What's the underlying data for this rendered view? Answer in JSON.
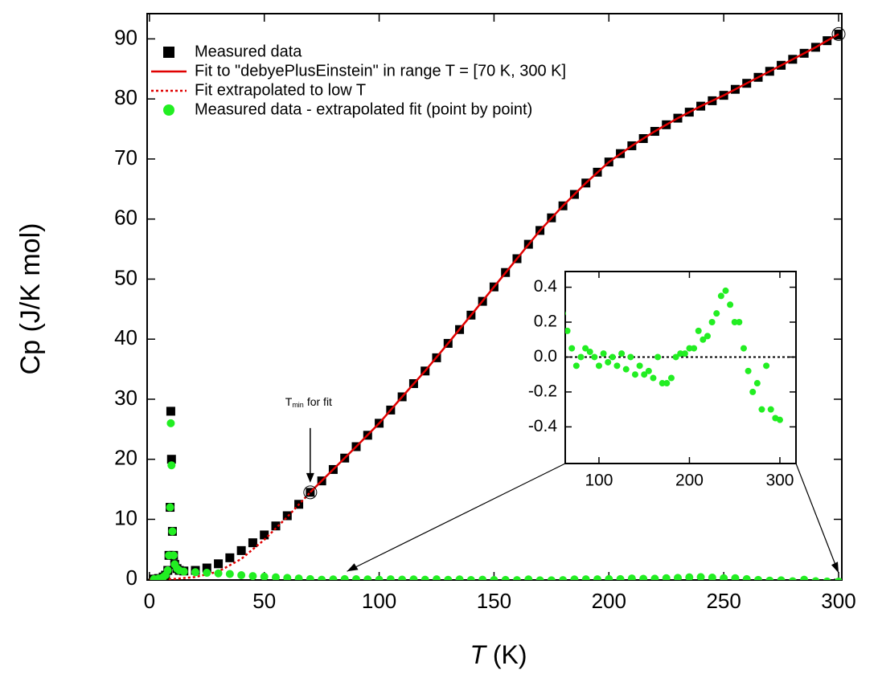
{
  "chart_data": {
    "type": "scatter",
    "y_label": "Cp (J/K mol)",
    "x_label": "T",
    "x_label_unit": "(K)",
    "annotation": {
      "text": "T",
      "sub": "min",
      "rest": "for fit"
    },
    "xlim": [
      -1,
      301.4
    ],
    "ylim": [
      -0.1,
      94.2
    ],
    "xticks": [
      0,
      50,
      100,
      150,
      200,
      250,
      300
    ],
    "yticks": [
      0,
      10,
      20,
      30,
      40,
      50,
      60,
      70,
      80,
      90
    ],
    "series": [
      {
        "name": "Measured data",
        "kind": "marker",
        "color": "#000000",
        "x": [
          2,
          4,
          6,
          7,
          8,
          8.5,
          9,
          9.3,
          9.6,
          10,
          10.5,
          11,
          12,
          13,
          15,
          20,
          25,
          30,
          35,
          40,
          45,
          50,
          55,
          60,
          65,
          70,
          75,
          80,
          85,
          90,
          95,
          100,
          105,
          110,
          115,
          120,
          125,
          130,
          135,
          140,
          145,
          150,
          155,
          160,
          165,
          170,
          175,
          180,
          185,
          190,
          195,
          200,
          205,
          210,
          215,
          220,
          225,
          230,
          235,
          240,
          245,
          250,
          255,
          260,
          265,
          270,
          275,
          280,
          285,
          290,
          295,
          300
        ],
        "values": [
          0.05,
          0.15,
          0.4,
          0.7,
          1.5,
          4,
          12,
          28,
          20,
          8,
          4,
          2.5,
          1.8,
          1.5,
          1.4,
          1.5,
          1.9,
          2.6,
          3.6,
          4.8,
          6.1,
          7.4,
          8.9,
          10.6,
          12.5,
          14.5,
          16.4,
          18.3,
          20.2,
          22.1,
          24.0,
          26.0,
          28.2,
          30.4,
          32.6,
          34.7,
          36.9,
          39.3,
          41.6,
          44.0,
          46.3,
          48.7,
          51.1,
          53.4,
          55.8,
          58.1,
          60.2,
          62.2,
          64.1,
          66.0,
          67.8,
          69.5,
          70.9,
          72.2,
          73.4,
          74.6,
          75.7,
          76.8,
          77.8,
          78.8,
          79.7,
          80.6,
          81.6,
          82.6,
          83.6,
          84.6,
          85.6,
          86.6,
          87.6,
          88.6,
          89.7,
          90.8
        ]
      },
      {
        "name": "Fit to \"debyePlusEinstein\" in range T = [70 K, 300 K]",
        "kind": "line",
        "color": "#e00000",
        "x": [
          70,
          80,
          90,
          100,
          110,
          120,
          130,
          140,
          150,
          160,
          170,
          180,
          190,
          200,
          210,
          220,
          230,
          240,
          250,
          260,
          270,
          280,
          290,
          300
        ],
        "values": [
          14.5,
          18.3,
          22.1,
          26.0,
          30.4,
          34.7,
          39.3,
          44.0,
          48.7,
          53.4,
          58.1,
          62.2,
          66.0,
          69.5,
          72.2,
          74.6,
          76.8,
          78.8,
          80.6,
          82.6,
          84.6,
          86.6,
          88.6,
          90.8
        ]
      },
      {
        "name": "Fit extrapolated to low T",
        "kind": "dotted",
        "color": "#e00000",
        "x": [
          0,
          10,
          20,
          30,
          40,
          50,
          60,
          70
        ],
        "values": [
          0,
          0.05,
          0.4,
          1.3,
          3.4,
          6.6,
          10.4,
          14.5
        ]
      },
      {
        "name": "Measured data - extrapolated fit (point by point)",
        "kind": "circle",
        "color": "#22ee22",
        "inset": true,
        "x": [
          2,
          4,
          6,
          7,
          8,
          8.5,
          9,
          9.3,
          9.6,
          10,
          10.5,
          11,
          12,
          13,
          15,
          20,
          25,
          30,
          35,
          40,
          45,
          50,
          55,
          60,
          65,
          70,
          75,
          80,
          85,
          90,
          95,
          100,
          105,
          110,
          115,
          120,
          125,
          130,
          135,
          140,
          145,
          150,
          155,
          160,
          165,
          170,
          175,
          180,
          185,
          190,
          195,
          200,
          205,
          210,
          215,
          220,
          225,
          230,
          235,
          240,
          245,
          250,
          255,
          260,
          265,
          270,
          275,
          280,
          285,
          290,
          295,
          300
        ],
        "values": [
          0.05,
          0.15,
          0.4,
          0.7,
          1.5,
          4,
          12,
          26,
          19,
          8,
          4,
          2.5,
          1.8,
          1.5,
          1.3,
          1.2,
          1.1,
          1.0,
          0.9,
          0.7,
          0.55,
          0.45,
          0.35,
          0.25,
          0.15,
          0.05,
          -0.05,
          0,
          0.05,
          0.03,
          0,
          -0.05,
          0.02,
          -0.03,
          0,
          -0.05,
          0.02,
          -0.07,
          0,
          -0.1,
          -0.05,
          -0.1,
          -0.08,
          -0.12,
          0,
          -0.15,
          -0.15,
          -0.12,
          0,
          0.02,
          0.02,
          0.05,
          0.05,
          0.15,
          0.1,
          0.12,
          0.2,
          0.25,
          0.35,
          0.38,
          0.3,
          0.2,
          0.2,
          0.05,
          -0.08,
          -0.2,
          -0.15,
          -0.3,
          -0.05,
          -0.3,
          -0.35,
          -0.36
        ]
      }
    ],
    "inset": {
      "xlim": [
        62.7,
        317.8
      ],
      "ylim": [
        -0.61,
        0.49
      ],
      "xticks": [
        100,
        200,
        300
      ],
      "yticks": [
        0.4,
        0.2,
        {
          "value": 0,
          "label": "0.0"
        },
        -0.2,
        -0.4
      ]
    }
  }
}
